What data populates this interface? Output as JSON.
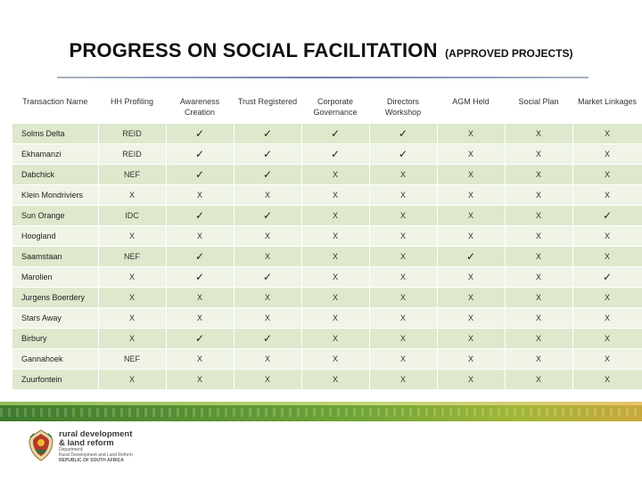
{
  "title": {
    "main": "PROGRESS ON SOCIAL FACILITATION",
    "sub": "(APPROVED PROJECTS)"
  },
  "table": {
    "columns": [
      "Transaction Name",
      "HH Profiling",
      "Awareness Creation",
      "Trust Registered",
      "Corporate Governance",
      "Directors Workshop",
      "AGM Held",
      "Social Plan",
      "Market Linkages"
    ],
    "rows": [
      {
        "name": "Solms Delta",
        "hh": "REID",
        "status": [
          "✓",
          "✓",
          "✓",
          "✓",
          "X",
          "X",
          "X"
        ]
      },
      {
        "name": "Ekhamanzi",
        "hh": "REID",
        "status": [
          "✓",
          "✓",
          "✓",
          "✓",
          "X",
          "X",
          "X"
        ]
      },
      {
        "name": "Dabchick",
        "hh": "NEF",
        "status": [
          "✓",
          "✓",
          "X",
          "X",
          "X",
          "X",
          "X"
        ]
      },
      {
        "name": "Klein Mondriviers",
        "hh": "X",
        "status": [
          "X",
          "X",
          "X",
          "X",
          "X",
          "X",
          "X"
        ]
      },
      {
        "name": "Sun Orange",
        "hh": "IDC",
        "status": [
          "✓",
          "✓",
          "X",
          "X",
          "X",
          "X",
          "✓"
        ]
      },
      {
        "name": "Hoogland",
        "hh": "X",
        "status": [
          "X",
          "X",
          "X",
          "X",
          "X",
          "X",
          "X"
        ]
      },
      {
        "name": "Saamstaan",
        "hh": "NEF",
        "status": [
          "✓",
          "X",
          "X",
          "X",
          "✓",
          "X",
          "X"
        ]
      },
      {
        "name": "Marolien",
        "hh": "X",
        "status": [
          "✓",
          "✓",
          "X",
          "X",
          "X",
          "X",
          "✓"
        ]
      },
      {
        "name": "Jurgens Boerdery",
        "hh": "X",
        "status": [
          "X",
          "X",
          "X",
          "X",
          "X",
          "X",
          "X"
        ]
      },
      {
        "name": "Stars Away",
        "hh": "X",
        "status": [
          "X",
          "X",
          "X",
          "X",
          "X",
          "X",
          "X"
        ]
      },
      {
        "name": "Birbury",
        "hh": "X",
        "status": [
          "✓",
          "✓",
          "X",
          "X",
          "X",
          "X",
          "X"
        ]
      },
      {
        "name": "Gannahoek",
        "hh": "NEF",
        "status": [
          "X",
          "X",
          "X",
          "X",
          "X",
          "X",
          "X"
        ]
      },
      {
        "name": "Zuurfontein",
        "hh": "X",
        "status": [
          "X",
          "X",
          "X",
          "X",
          "X",
          "X",
          "X"
        ]
      }
    ]
  },
  "footer": {
    "brand_line1": "rural development",
    "brand_line2": "& land reform",
    "dept_line1": "Department:",
    "dept_line2": "Rural Development and Land Reform",
    "dept_line3": "REPUBLIC OF SOUTH AFRICA",
    "crest_icon": "coat-of-arms-icon"
  },
  "colors": {
    "row_odd": "#dde8cc",
    "row_even": "#eff4e7",
    "footer_green": "#3d7a2c",
    "footer_gold": "#c9a83a"
  }
}
